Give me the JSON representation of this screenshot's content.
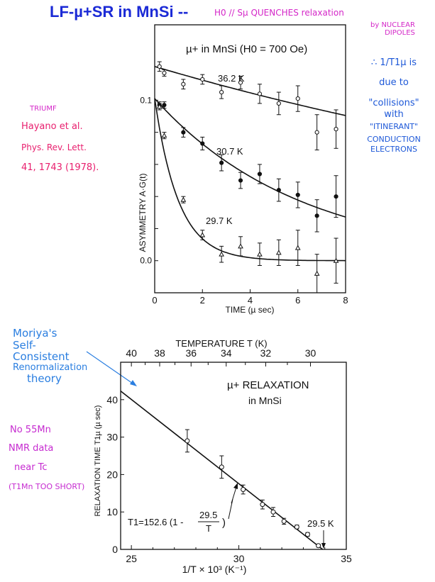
{
  "header": {
    "title": "LF-µ+SR in MnSi --",
    "subtitle": "H0 // Sµ QUENCHES relaxation",
    "subtitle_cont": [
      "by NUCLEAR",
      "DIPOLES"
    ]
  },
  "reference": {
    "lab": "TRIUMF",
    "authors": "Hayano et al.",
    "journal": "Phys. Rev. Lett.",
    "citation": "41, 1743 (1978)."
  },
  "right_notes": [
    "∴ 1/T1µ is",
    "due to",
    "\"collisions\"",
    "with",
    "\"ITINERANT\"",
    "CONDUCTION",
    "ELECTRONS"
  ],
  "moriya_note": [
    "Moriya's",
    "Self-",
    "Consistent",
    "Renormalization",
    "theory"
  ],
  "nmr_note": [
    "No 55Mn",
    "NMR data",
    "near Tc",
    "(T1Mn TOO SHORT)"
  ],
  "colors": {
    "title": "#1b2ad6",
    "magenta": "#d427c8",
    "ref": "#e81f6e",
    "blue_note": "#1d58d8",
    "moriya": "#2a7ee0"
  },
  "chart_data": [
    {
      "type": "scatter",
      "title": "µ+ in MnSi (H0 = 700 Oe)",
      "xlabel": "TIME (µ sec)",
      "ylabel": "ASYMMETRY A·G(t)",
      "xlim": [
        0,
        8
      ],
      "ylim": [
        -0.02,
        0.147
      ],
      "xticks": [
        0,
        2,
        4,
        6,
        8
      ],
      "ytick_labels": [
        {
          "value": 0.0,
          "label": "0.0"
        },
        {
          "value": 0.1,
          "label": "0.1"
        }
      ],
      "minor_yticks": [
        0.02,
        0.04,
        0.06,
        0.08
      ],
      "grid": false,
      "series": [
        {
          "name": "36.2 K",
          "marker": "open-circle",
          "x": [
            0.2,
            0.4,
            1.2,
            2.0,
            2.8,
            3.6,
            4.4,
            5.2,
            6.0,
            6.8,
            7.6
          ],
          "y": [
            0.121,
            0.117,
            0.11,
            0.113,
            0.105,
            0.111,
            0.104,
            0.098,
            0.101,
            0.08,
            0.082
          ],
          "err": [
            0.003,
            0.002,
            0.003,
            0.003,
            0.004,
            0.004,
            0.006,
            0.007,
            0.008,
            0.011,
            0.012
          ],
          "fit": {
            "A0": 0.121,
            "A_inf": 0,
            "tau": 27.5
          }
        },
        {
          "name": "30.7 K",
          "marker": "filled-circle",
          "x": [
            0.2,
            0.4,
            1.2,
            2.0,
            2.8,
            3.6,
            4.4,
            5.2,
            6.0,
            6.8,
            7.6
          ],
          "y": [
            0.097,
            0.097,
            0.08,
            0.073,
            0.061,
            0.05,
            0.054,
            0.044,
            0.041,
            0.028,
            0.04
          ],
          "err": [
            0.002,
            0.002,
            0.003,
            0.004,
            0.005,
            0.005,
            0.006,
            0.007,
            0.008,
            0.01,
            0.013
          ],
          "fit": {
            "A0": 0.101,
            "A_inf": 0,
            "tau": 6.1
          }
        },
        {
          "name": "29.7 K",
          "marker": "open-triangle",
          "x": [
            0.2,
            0.4,
            1.2,
            2.0,
            2.8,
            3.6,
            4.4,
            5.2,
            6.0,
            6.8,
            7.6
          ],
          "y": [
            0.096,
            0.078,
            0.038,
            0.016,
            0.004,
            0.009,
            0.004,
            0.005,
            0.008,
            -0.008,
            0.0
          ],
          "err": [
            0.002,
            0.002,
            0.002,
            0.003,
            0.005,
            0.006,
            0.007,
            0.008,
            0.011,
            0.012,
            0.014
          ],
          "fit": {
            "A0": 0.101,
            "A_inf": 0,
            "tau": 1.0
          }
        }
      ]
    },
    {
      "type": "scatter",
      "title": "µ+ RELAXATION",
      "subtitle": "in MnSi",
      "xlabel": "1/T × 10³ (K⁻¹)",
      "ylabel": "RELAXATION TIME T1µ (µ sec)",
      "top_xlabel": "TEMPERATURE T (K)",
      "xlim": [
        24.5,
        35
      ],
      "ylim": [
        0,
        50
      ],
      "xticks": [
        25,
        30,
        35
      ],
      "yticks": [
        0,
        10,
        20,
        30,
        40
      ],
      "top_xticks": [
        40,
        38,
        36,
        34,
        32,
        30
      ],
      "grid": false,
      "points": {
        "x": [
          27.6,
          29.2,
          30.2,
          31.1,
          31.6,
          32.1,
          32.7,
          33.2,
          33.7
        ],
        "y": [
          29,
          22,
          16,
          12,
          10,
          7.5,
          6,
          4,
          1
        ],
        "err": [
          3,
          3,
          1.2,
          1.2,
          1.2,
          0.8,
          0.5,
          0.5,
          0.4
        ]
      },
      "fit": {
        "label": "T1 = 152.6 (1 - 29.5/T)",
        "coef": 152.6,
        "Tc": 29.5
      },
      "annotations": [
        "T1=152.6 (1 -",
        "29.5",
        "T",
        ")",
        "29.5 K"
      ]
    }
  ]
}
